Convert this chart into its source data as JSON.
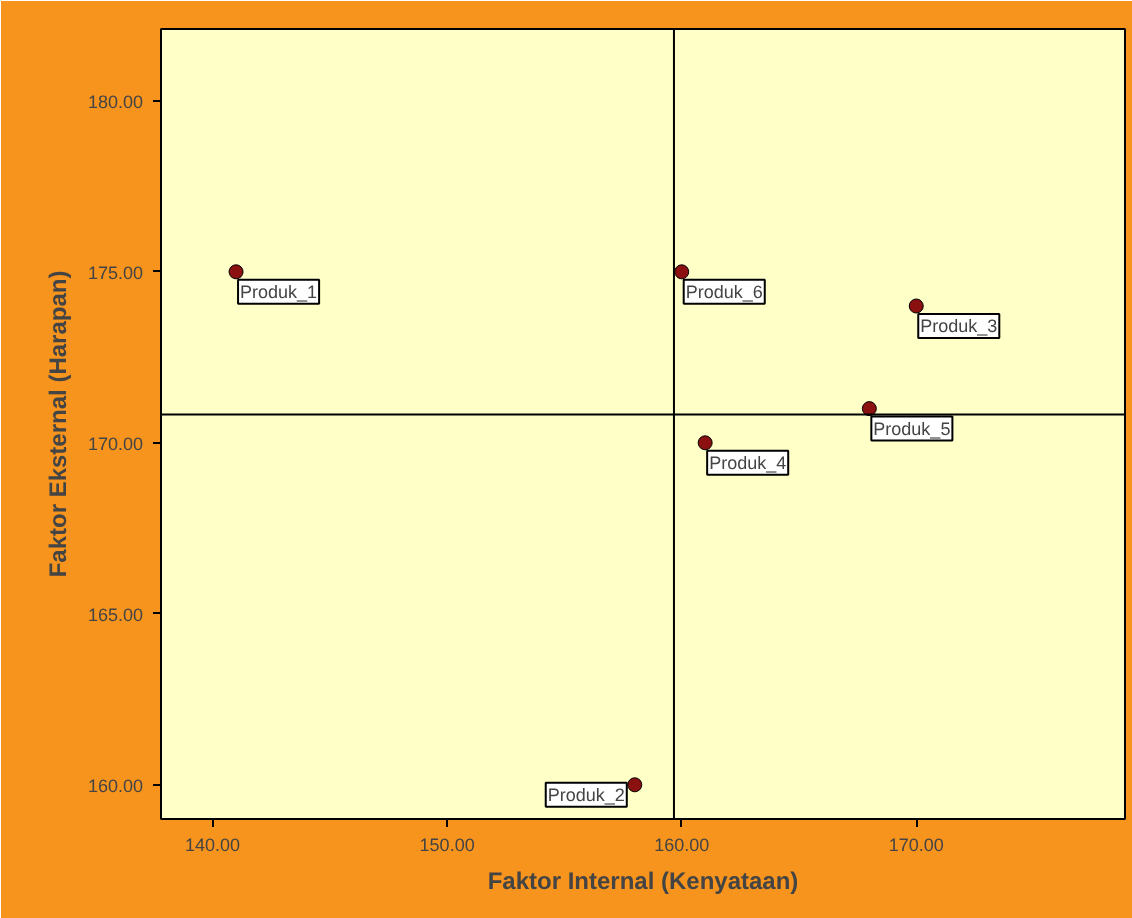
{
  "chart_data": {
    "type": "scatter",
    "xlabel": "Faktor Internal (Kenyataan)",
    "ylabel": "Faktor Eksternal (Harapan)",
    "x": [
      141,
      160,
      170,
      168,
      161,
      158
    ],
    "series": [
      {
        "color": "#8b1010",
        "values": [
          175,
          175,
          174,
          171,
          170,
          160
        ]
      }
    ],
    "marker": "circle",
    "grid": false,
    "xlim": [
      137.8,
      178.9
    ],
    "ylim": [
      159.0,
      182.1
    ],
    "xticks": [
      {
        "value": 140,
        "label": "140.00"
      },
      {
        "value": 150,
        "label": "150.00"
      },
      {
        "value": 160,
        "label": "160.00"
      },
      {
        "value": 170,
        "label": "170.00"
      }
    ],
    "yticks": [
      {
        "value": 160,
        "label": "160.00"
      },
      {
        "value": 165,
        "label": "165.00"
      },
      {
        "value": 170,
        "label": "170.00"
      },
      {
        "value": 175,
        "label": "175.00"
      },
      {
        "value": 180,
        "label": "180.00"
      }
    ],
    "ref_lines": [
      {
        "axis": "x",
        "value": 159.67,
        "color": "#000000"
      },
      {
        "axis": "y",
        "value": 170.83,
        "color": "#000000"
      }
    ],
    "annotations": [
      {
        "text": "Produk_1",
        "x": 141,
        "y": 175
      },
      {
        "text": "Produk_6",
        "x": 160,
        "y": 175
      },
      {
        "text": "Produk_3",
        "x": 170,
        "y": 174
      },
      {
        "text": "Produk_5",
        "x": 168,
        "y": 171
      },
      {
        "text": "Produk_4",
        "x": 161,
        "y": 170
      },
      {
        "text": "Produk_2",
        "x": 158,
        "y": 160
      }
    ]
  }
}
